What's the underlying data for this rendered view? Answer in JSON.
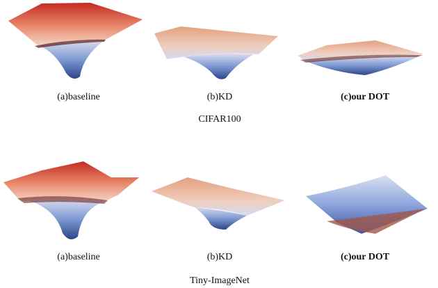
{
  "rows": [
    {
      "dataset": "CIFAR100",
      "captions": [
        "(a)baseline",
        "(b)KD",
        "(c)our DOT"
      ]
    },
    {
      "dataset": "Tiny-ImageNet",
      "captions": [
        "(a)baseline",
        "(b)KD",
        "(c)our DOT"
      ]
    }
  ]
}
